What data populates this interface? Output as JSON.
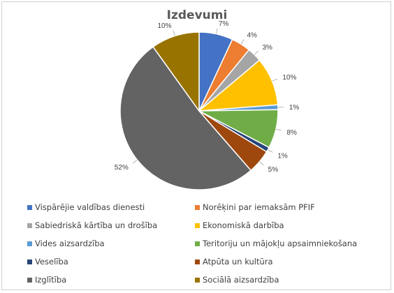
{
  "chart_data": {
    "type": "pie",
    "title": "Izdevumi",
    "slices": [
      {
        "label": "Vispārējie valdības dienesti",
        "value": 7,
        "display": "7%",
        "color": "#4472C4"
      },
      {
        "label": "Norēķini par iemaksām PFIF",
        "value": 4,
        "display": "4%",
        "color": "#ED7D31"
      },
      {
        "label": "Sabiedriskā kārtība un drošība",
        "value": 3,
        "display": "3%",
        "color": "#A5A5A5"
      },
      {
        "label": "Ekonomiskā darbība",
        "value": 10,
        "display": "10%",
        "color": "#FFC000"
      },
      {
        "label": "Vides aizsardzība",
        "value": 1,
        "display": "1%",
        "color": "#5B9BD5"
      },
      {
        "label": "Teritoriju un mājokļu apsaimniekošana",
        "value": 8,
        "display": "8%",
        "color": "#70AD47"
      },
      {
        "label": "Veselība",
        "value": 1,
        "display": "1%",
        "color": "#264478"
      },
      {
        "label": "Atpūta un kultūra",
        "value": 5,
        "display": "5%",
        "color": "#9E480E"
      },
      {
        "label": "Izglītība",
        "value": 52,
        "display": "52%",
        "color": "#636363"
      },
      {
        "label": "Sociālā aizsardzība",
        "value": 10,
        "display": "10%",
        "color": "#997300"
      }
    ],
    "legend_position": "bottom"
  }
}
